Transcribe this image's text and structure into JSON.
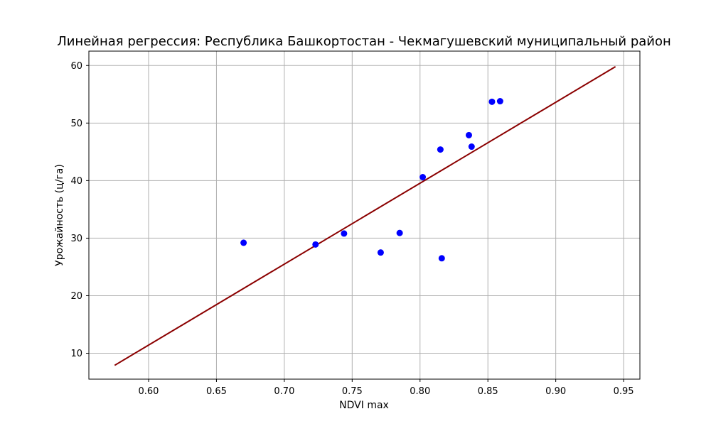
{
  "chart_data": {
    "type": "scatter",
    "title": "Линейная регрессия: Республика Башкортостан - Чекмагушевский муниципальный район",
    "xlabel": "NDVI max",
    "ylabel": "Урожайность (ц/га)",
    "xlim": [
      0.556,
      0.962
    ],
    "ylim": [
      5.5,
      62.5
    ],
    "grid": true,
    "x_ticks": [
      0.6,
      0.65,
      0.7,
      0.75,
      0.8,
      0.85,
      0.9,
      0.95
    ],
    "x_tick_labels": [
      "0.60",
      "0.65",
      "0.70",
      "0.75",
      "0.80",
      "0.85",
      "0.90",
      "0.95"
    ],
    "y_ticks": [
      10,
      20,
      30,
      40,
      50,
      60
    ],
    "y_tick_labels": [
      "10",
      "20",
      "30",
      "40",
      "50",
      "60"
    ],
    "series": [
      {
        "kind": "scatter",
        "color": "#0000ff",
        "points": [
          {
            "x": 0.67,
            "y": 29.2
          },
          {
            "x": 0.723,
            "y": 28.9
          },
          {
            "x": 0.744,
            "y": 30.8
          },
          {
            "x": 0.771,
            "y": 27.5
          },
          {
            "x": 0.785,
            "y": 30.9
          },
          {
            "x": 0.802,
            "y": 40.6
          },
          {
            "x": 0.815,
            "y": 45.4
          },
          {
            "x": 0.816,
            "y": 26.5
          },
          {
            "x": 0.836,
            "y": 47.9
          },
          {
            "x": 0.838,
            "y": 45.9
          },
          {
            "x": 0.853,
            "y": 53.7
          },
          {
            "x": 0.859,
            "y": 53.8
          }
        ]
      },
      {
        "kind": "line",
        "color": "#8b0000",
        "points": [
          {
            "x": 0.575,
            "y": 7.9
          },
          {
            "x": 0.944,
            "y": 59.8
          }
        ]
      }
    ]
  }
}
